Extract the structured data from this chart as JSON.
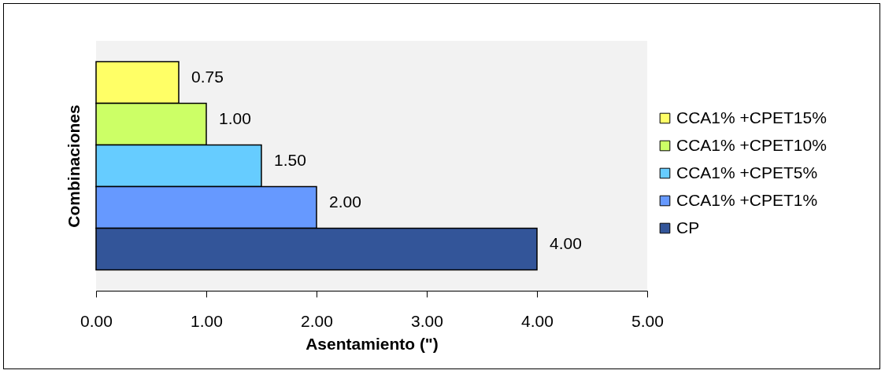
{
  "chart_data": {
    "type": "bar",
    "orientation": "horizontal",
    "xlabel": "Asentamiento (\")",
    "ylabel": "Combinaciones",
    "categories": [
      null,
      null,
      null,
      null,
      null
    ],
    "series": [
      {
        "name": "CCA1% +CPET15%",
        "color": "#ffff66",
        "values": [
          0.75,
          null,
          null,
          null,
          null
        ],
        "value_labels": [
          "0.75",
          null,
          null,
          null,
          null
        ]
      },
      {
        "name": "CCA1% +CPET10%",
        "color": "#ccff66",
        "values": [
          null,
          1.0,
          null,
          null,
          null
        ],
        "value_labels": [
          null,
          "1.00",
          null,
          null,
          null
        ]
      },
      {
        "name": "CCA1% +CPET5%",
        "color": "#66ccff",
        "values": [
          null,
          null,
          1.5,
          null,
          null
        ],
        "value_labels": [
          null,
          null,
          "1.50",
          null,
          null
        ]
      },
      {
        "name": "CCA1% +CPET1%",
        "color": "#6699ff",
        "values": [
          null,
          null,
          null,
          2.0,
          null
        ],
        "value_labels": [
          null,
          null,
          null,
          "2.00",
          null
        ]
      },
      {
        "name": "CP",
        "color": "#335599",
        "values": [
          null,
          null,
          null,
          null,
          4.0
        ],
        "value_labels": [
          null,
          null,
          null,
          null,
          "4.00"
        ]
      }
    ],
    "xlim": [
      0,
      5
    ],
    "xticks": [
      {
        "value": 0,
        "label": "0.00"
      },
      {
        "value": 1,
        "label": "1.00"
      },
      {
        "value": 2,
        "label": "2.00"
      },
      {
        "value": 3,
        "label": "3.00"
      },
      {
        "value": 4,
        "label": "4.00"
      },
      {
        "value": 5,
        "label": "5.00"
      }
    ],
    "legend": "right",
    "stacked": true
  }
}
